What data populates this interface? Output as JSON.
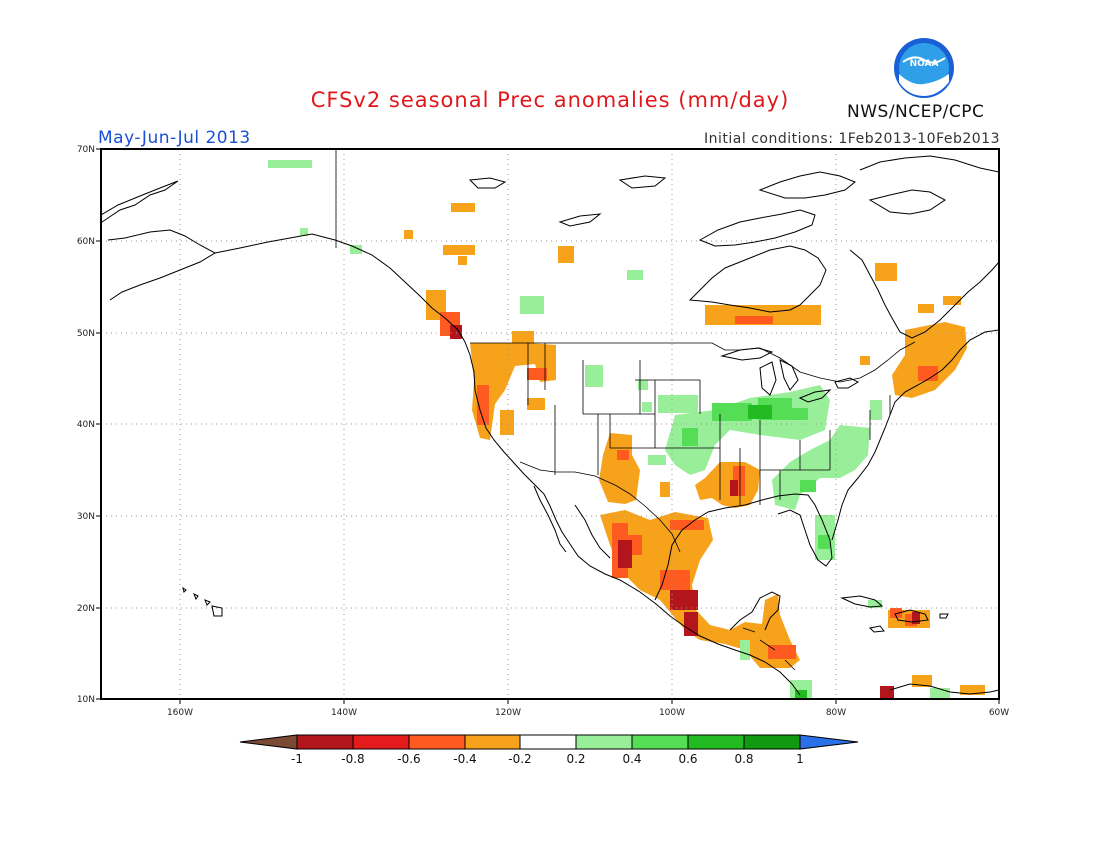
{
  "header": {
    "title": "CFSv2 seasonal Prec anomalies (mm/day)",
    "period": "May-Jun-Jul 2013",
    "initial_conditions": "Initial conditions: 1Feb2013-10Feb2013",
    "agency": "NWS/NCEP/CPC",
    "logo_text": "NOAA"
  },
  "map": {
    "projection": "lat-lon",
    "lon_range": [
      -175,
      -60
    ],
    "lat_range": [
      10,
      70
    ],
    "grid": "dotted",
    "lon_ticks": [
      "160W",
      "140W",
      "120W",
      "100W",
      "80W",
      "60W"
    ],
    "lat_ticks": [
      "10N",
      "20N",
      "30N",
      "40N",
      "50N",
      "60N",
      "70N"
    ]
  },
  "colorbar": {
    "labels": [
      "-1",
      "-0.8",
      "-0.6",
      "-0.4",
      "-0.2",
      "0.2",
      "0.4",
      "0.6",
      "0.8",
      "1"
    ],
    "colors": [
      "#7a4a35",
      "#b2161c",
      "#e41a1c",
      "#ff5a1f",
      "#f7a21b",
      "#ffffff",
      "#99ee99",
      "#55dd55",
      "#22bb22",
      "#119911",
      "#2a70e8"
    ]
  },
  "anomaly_regions": [
    {
      "name": "Alaska north coast",
      "lon": [
        -155,
        -147
      ],
      "lat": [
        68.5,
        69.5
      ],
      "level": "0.2 to 0.4"
    },
    {
      "name": "Pacific Northwest coast",
      "lon": [
        -125,
        -121
      ],
      "lat": [
        39,
        50
      ],
      "level": "-0.4 to -0.2"
    },
    {
      "name": "Interior Northwest",
      "lon": [
        -121,
        -115
      ],
      "lat": [
        42,
        48
      ],
      "level": "-0.4 to -0.2"
    },
    {
      "name": "Southern Rockies",
      "lon": [
        -110,
        -104
      ],
      "lat": [
        31,
        37
      ],
      "level": "-0.4 to -0.2"
    },
    {
      "name": "Northwest Mexico",
      "lon": [
        -109,
        -103
      ],
      "lat": [
        20,
        30
      ],
      "level": "-0.6 to -0.4"
    },
    {
      "name": "Texas Gulf coast",
      "lon": [
        -102,
        -95
      ],
      "lat": [
        22,
        31
      ],
      "level": "-0.4 to -0.2"
    },
    {
      "name": "Southern Mexico",
      "lon": [
        -102,
        -96
      ],
      "lat": [
        16,
        21
      ],
      "level": "-0.8 to -0.6"
    },
    {
      "name": "Lower Mississippi",
      "lon": [
        -95,
        -90
      ],
      "lat": [
        30,
        35
      ],
      "level": "-0.6 to -0.4"
    },
    {
      "name": "Northern Quebec",
      "lon": [
        -98,
        -85
      ],
      "lat": [
        51,
        53
      ],
      "level": "-0.4 to -0.2"
    },
    {
      "name": "New England and Maritimes",
      "lon": [
        -74,
        -68
      ],
      "lat": [
        43,
        48
      ],
      "level": "-0.4 to -0.2"
    },
    {
      "name": "Central Plains to Ohio Valley",
      "lon": [
        -100,
        -82
      ],
      "lat": [
        38,
        42
      ],
      "level": "0.2 to 0.6"
    },
    {
      "name": "Southeast US",
      "lon": [
        -88,
        -78
      ],
      "lat": [
        28,
        37
      ],
      "level": "0.2 to 0.4"
    },
    {
      "name": "Florida",
      "lon": [
        -82,
        -80
      ],
      "lat": [
        26,
        29
      ],
      "level": "0.2 to 0.4"
    },
    {
      "name": "Hispaniola",
      "lon": [
        -73,
        -69
      ],
      "lat": [
        18,
        19.5
      ],
      "level": "-0.6 to -0.4"
    },
    {
      "name": "Central America",
      "lon": [
        -92,
        -83
      ],
      "lat": [
        12,
        18
      ],
      "level": "-0.4 to -0.2"
    }
  ]
}
